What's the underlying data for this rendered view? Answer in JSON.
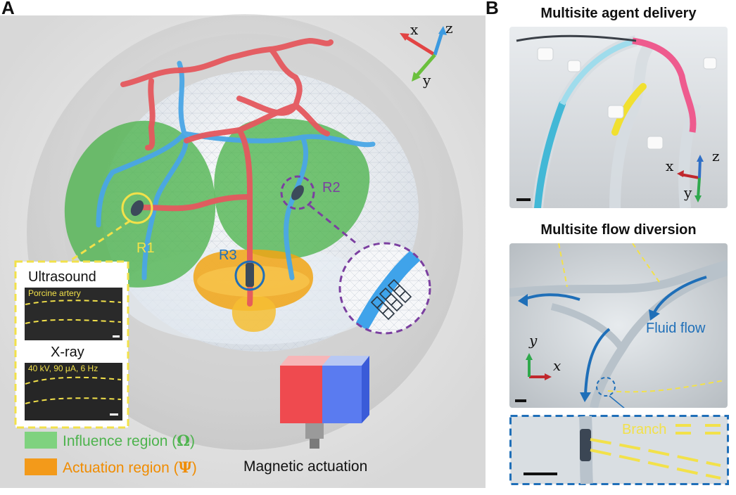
{
  "panelA": {
    "letter": "A",
    "axes": {
      "x": "x",
      "y": "y",
      "z": "z"
    },
    "regions": {
      "r1": "R1",
      "r2": "R2",
      "r3": "R3"
    },
    "inset": {
      "ultrasound_title": "Ultrasound",
      "ultrasound_caption": "Porcine artery",
      "xray_title": "X-ray",
      "xray_caption": "40 kV, 90 μA, 6 Hz"
    },
    "legend": {
      "influence_label": "Influence region (",
      "influence_symbol": "Ω",
      "influence_close": ")",
      "actuation_label": "Actuation region (",
      "actuation_symbol": "Ψ",
      "actuation_close": ")",
      "magnet_label": "Magnetic actuation"
    },
    "colors": {
      "influence": "#5fbf5f",
      "actuation": "#f08c00",
      "r1": "#f2e14a",
      "r2": "#7b3fa0",
      "r3": "#1f6fb8"
    }
  },
  "panelB": {
    "letter": "B",
    "top_title": "Multisite agent delivery",
    "bottom_title": "Multisite flow diversion",
    "axes": {
      "x": "x",
      "y": "y",
      "z": "z"
    },
    "fluid_flow_label": "Fluid flow",
    "branch_label": "Branch"
  }
}
